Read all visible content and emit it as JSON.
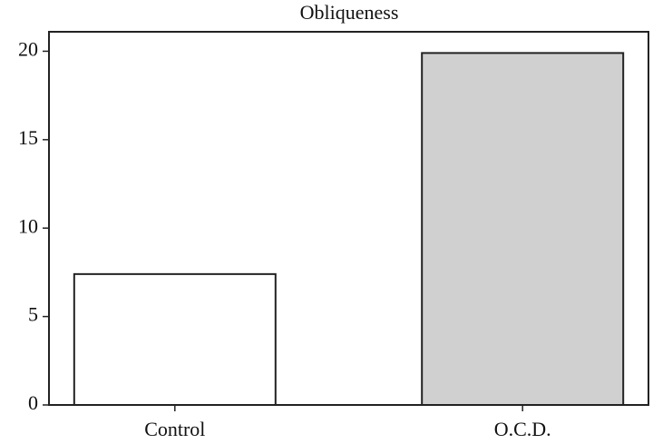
{
  "chart_data": {
    "type": "bar",
    "title": "Obliqueness",
    "categories": [
      "Control",
      "O.C.D."
    ],
    "values": [
      7.4,
      19.9
    ],
    "colors": [
      "#ffffff",
      "#d0d0d0"
    ],
    "ylim": [
      0,
      21.1
    ],
    "yticks": [
      0,
      5,
      10,
      15,
      20
    ],
    "grid": false
  }
}
